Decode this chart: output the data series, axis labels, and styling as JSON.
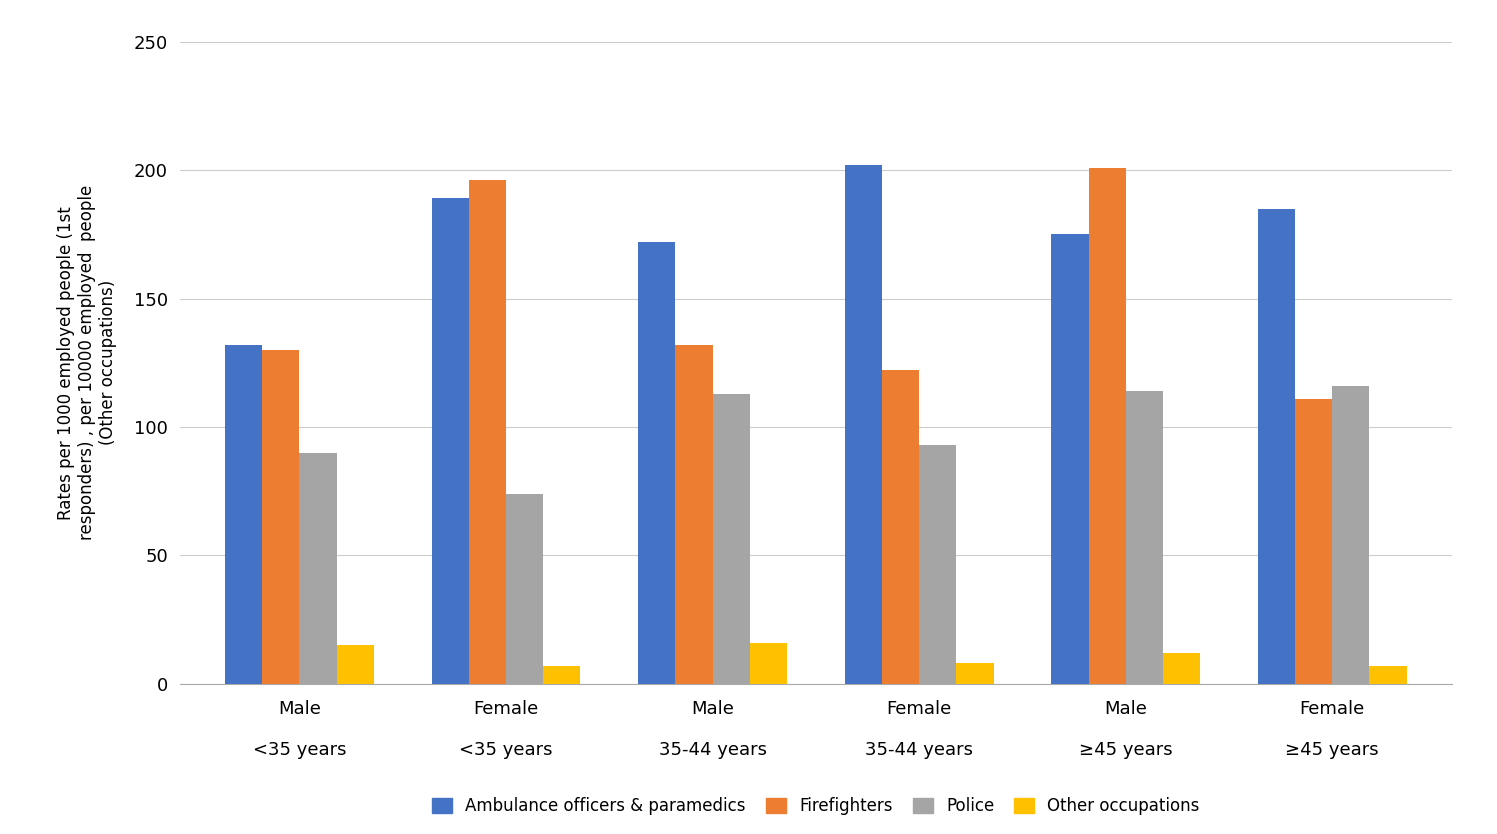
{
  "groups": [
    {
      "label_line1": "Male",
      "label_line2": "<35 years"
    },
    {
      "label_line1": "Female",
      "label_line2": "<35 years"
    },
    {
      "label_line1": "Male",
      "label_line2": "35-44 years"
    },
    {
      "label_line1": "Female",
      "label_line2": "35-44 years"
    },
    {
      "label_line1": "Male",
      "label_line2": "≥45 years"
    },
    {
      "label_line1": "Female",
      "label_line2": "≥45 years"
    }
  ],
  "series": [
    {
      "name": "Ambulance officers & paramedics",
      "color": "#4472C4",
      "values": [
        132,
        189,
        172,
        202,
        175,
        185
      ]
    },
    {
      "name": "Firefighters",
      "color": "#ED7D31",
      "values": [
        130,
        196,
        132,
        122,
        201,
        111
      ]
    },
    {
      "name": "Police",
      "color": "#A5A5A5",
      "values": [
        90,
        74,
        113,
        93,
        114,
        116
      ]
    },
    {
      "name": "Other occupations",
      "color": "#FFC000",
      "values": [
        15,
        7,
        16,
        8,
        12,
        7
      ]
    }
  ],
  "ylabel": "Rates per 1000 employed people (1st\nresponders) , per 10000 employed  people\n(Other occupations)",
  "ylim": [
    0,
    250
  ],
  "yticks": [
    0,
    50,
    100,
    150,
    200,
    250
  ],
  "bar_width": 0.18,
  "background_color": "#FFFFFF",
  "grid_color": "#CCCCCC",
  "figure_width": 14.97,
  "figure_height": 8.34,
  "dpi": 100
}
